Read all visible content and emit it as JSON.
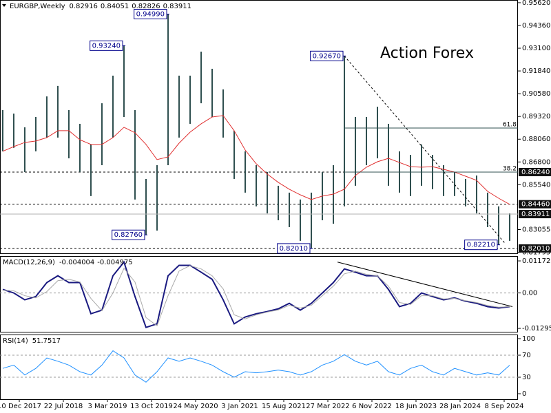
{
  "x_axis": {
    "x": [
      2,
      10,
      18,
      26,
      34,
      42,
      50,
      58,
      66,
      74,
      82,
      90,
      98,
      106,
      114,
      122,
      130,
      138,
      146,
      154,
      162,
      170,
      178,
      186,
      194,
      202,
      210,
      218,
      226,
      234,
      242,
      250,
      258,
      266,
      274,
      282,
      290,
      298,
      306,
      314,
      322,
      330,
      338,
      346,
      354,
      362,
      370
    ],
    "xlim": [
      0,
      376
    ],
    "xticks": [
      {
        "value": 14,
        "label": "10 Dec 2017"
      },
      {
        "value": 46,
        "label": "22 Jul 2018"
      },
      {
        "value": 78,
        "label": "3 Mar 2019"
      },
      {
        "value": 110,
        "label": "13 Oct 2019"
      },
      {
        "value": 142,
        "label": "24 May 2020"
      },
      {
        "value": 174,
        "label": "3 Jan 2021"
      },
      {
        "value": 206,
        "label": "15 Aug 2021"
      },
      {
        "value": 238,
        "label": "27 Mar 2022"
      },
      {
        "value": 270,
        "label": "6 Nov 2022"
      },
      {
        "value": 302,
        "label": "18 Jun 2023"
      },
      {
        "value": 334,
        "label": "28 Jan 2024"
      },
      {
        "value": 366,
        "label": "8 Sep 2024"
      }
    ]
  },
  "chart_data": [
    {
      "type": "ohlc",
      "title": "EURGBP,Weekly",
      "header_values": [
        0.82916,
        0.84051,
        0.82826,
        0.83911
      ],
      "watermark": "Action Forex",
      "color": "#2f4f4f",
      "highs": [
        0.8967,
        0.8948,
        0.8872,
        0.8929,
        0.9043,
        0.9101,
        0.8967,
        0.8891,
        0.8777,
        0.9005,
        0.9158,
        0.9324,
        0.8967,
        0.8586,
        0.8662,
        0.9499,
        0.9158,
        0.9158,
        0.9291,
        0.9196,
        0.9082,
        0.8853,
        0.8739,
        0.8662,
        0.8624,
        0.8548,
        0.851,
        0.8472,
        0.851,
        0.8624,
        0.8662,
        0.9267,
        0.8929,
        0.8929,
        0.8986,
        0.8891,
        0.8739,
        0.8719,
        0.8777,
        0.8719,
        0.8662,
        0.8624,
        0.8586,
        0.8605,
        0.851,
        0.8434,
        0.8395
      ],
      "lows": [
        0.8739,
        0.8758,
        0.8624,
        0.8739,
        0.8815,
        0.8815,
        0.87,
        0.8624,
        0.8491,
        0.8662,
        0.8815,
        0.8929,
        0.8472,
        0.8276,
        0.83,
        0.8662,
        0.8815,
        0.8891,
        0.9005,
        0.8929,
        0.8815,
        0.8586,
        0.851,
        0.8434,
        0.8395,
        0.8357,
        0.8319,
        0.8243,
        0.8201,
        0.8357,
        0.8338,
        0.8434,
        0.8548,
        0.8662,
        0.87,
        0.8548,
        0.851,
        0.8491,
        0.8548,
        0.8529,
        0.8491,
        0.8491,
        0.8434,
        0.8395,
        0.8319,
        0.8221,
        0.8243
      ],
      "series": [
        {
          "color": "#e03030",
          "values": [
            0.8739,
            0.8765,
            0.8788,
            0.8796,
            0.8815,
            0.8853,
            0.8853,
            0.8803,
            0.8777,
            0.8777,
            0.8815,
            0.8872,
            0.8842,
            0.8777,
            0.8693,
            0.8708,
            0.8784,
            0.8845,
            0.8891,
            0.8929,
            0.8937,
            0.8853,
            0.8746,
            0.867,
            0.8613,
            0.8567,
            0.8529,
            0.8498,
            0.8472,
            0.8491,
            0.8502,
            0.8529,
            0.8605,
            0.8651,
            0.8681,
            0.87,
            0.8677,
            0.8654,
            0.8651,
            0.8654,
            0.8639,
            0.8624,
            0.8601,
            0.8578,
            0.8517,
            0.8479,
            0.8445
          ]
        }
      ],
      "ylim": [
        0.8174,
        0.9577
      ],
      "yticks": [
        {
          "value": 0.9562,
          "label": "0.95620"
        },
        {
          "value": 0.9436,
          "label": "0.94360"
        },
        {
          "value": 0.931,
          "label": "0.93100"
        },
        {
          "value": 0.9184,
          "label": "0.91840"
        },
        {
          "value": 0.9058,
          "label": "0.90580"
        },
        {
          "value": 0.8932,
          "label": "0.89320"
        },
        {
          "value": 0.8806,
          "label": "0.88060"
        },
        {
          "value": 0.868,
          "label": "0.86800"
        },
        {
          "value": 0.8554,
          "label": "0.85540"
        },
        0.83055,
        0.81795
      ],
      "levels": [
        {
          "value": 0.8624,
          "label": "0.86240"
        },
        {
          "value": 0.8446,
          "label": "0.84460"
        },
        {
          "value": 0.8201,
          "label": "0.82010"
        }
      ],
      "current": 0.83911,
      "fib": [
        {
          "value": 0.8868,
          "label": "61.8"
        },
        {
          "value": 0.8624,
          "label": "38.2"
        }
      ],
      "annotations": [
        {
          "x": 90,
          "value": 0.9324,
          "label": "0.93240"
        },
        {
          "x": 122,
          "value": 0.9499,
          "label": "0.94990"
        },
        {
          "x": 106,
          "value": 0.8276,
          "label": "0.82760"
        },
        {
          "x": 226,
          "value": 0.8201,
          "label": "0.82010"
        },
        {
          "x": 250,
          "value": 0.9267,
          "label": "0.92670"
        },
        {
          "x": 362,
          "value": 0.8221,
          "label": "0.82210"
        }
      ],
      "trendline": {
        "x": [
          250,
          367
        ],
        "values": [
          0.9267,
          0.8226
        ]
      }
    },
    {
      "type": "line",
      "title": "MACD(12,26,9)",
      "header_values": [
        -0.004004,
        -0.004975
      ],
      "series": [
        {
          "color": "#1a1a80",
          "values": [
            0.0013,
            0,
            -0.0025,
            -0.0013,
            0.0038,
            0.0063,
            0.0038,
            0.0038,
            -0.0076,
            -0.0063,
            0.0063,
            0.0113,
            -0.0013,
            -0.0126,
            -0.0113,
            0.0063,
            0.0101,
            0.0101,
            0.0076,
            0.005,
            -0.0025,
            -0.0113,
            -0.0088,
            -0.0076,
            -0.0068,
            -0.0058,
            -0.0038,
            -0.0063,
            -0.0038,
            0,
            0.0038,
            0.0088,
            0.0076,
            0.0063,
            0.0063,
            0.0013,
            -0.005,
            -0.0038,
            0,
            -0.0013,
            -0.0025,
            -0.0018,
            -0.003,
            -0.0038,
            -0.005,
            -0.0055,
            -0.005
          ]
        },
        {
          "color": "#a9a9a9",
          "values": [
            0.001,
            0.0008,
            -0.001,
            -0.0018,
            0.0005,
            0.0045,
            0.005,
            0.004,
            -0.002,
            -0.0065,
            0,
            0.009,
            0.004,
            -0.009,
            -0.012,
            -0.001,
            0.008,
            0.01,
            0.0088,
            0.0063,
            0.0015,
            -0.008,
            -0.0095,
            -0.008,
            -0.007,
            -0.0062,
            -0.0045,
            -0.0055,
            -0.0045,
            -0.001,
            0.0025,
            0.007,
            0.008,
            0.0068,
            0.0063,
            0.0025,
            -0.0035,
            -0.0042,
            -0.001,
            -0.001,
            -0.0022,
            -0.002,
            -0.0028,
            -0.0035,
            -0.0046,
            -0.0052,
            -0.005
          ]
        }
      ],
      "ylim": [
        -0.0142,
        0.0135
      ],
      "yticks": [
        0.011727,
        {
          "value": 0,
          "label": "0.00"
        },
        -0.012951
      ],
      "levels": [
        0
      ],
      "trendline": {
        "x": [
          245,
          372
        ],
        "values": [
          0.0113,
          -0.005
        ]
      }
    },
    {
      "type": "line",
      "title": "RSI(14)",
      "header_values": [
        51.7517
      ],
      "series": [
        {
          "color": "#1e90ff",
          "values": [
            46,
            52,
            34,
            46,
            65,
            59,
            52,
            40,
            34,
            52,
            78,
            65,
            34,
            21,
            40,
            65,
            59,
            65,
            59,
            52,
            40,
            30,
            40,
            38,
            40,
            43,
            40,
            34,
            40,
            52,
            59,
            71,
            59,
            52,
            59,
            40,
            34,
            46,
            52,
            40,
            34,
            46,
            40,
            34,
            38,
            34,
            51.75
          ]
        }
      ],
      "ylim": [
        -10,
        107.5
      ],
      "yticks": [
        100,
        70,
        30,
        0
      ],
      "levels": [
        70,
        30
      ]
    }
  ]
}
